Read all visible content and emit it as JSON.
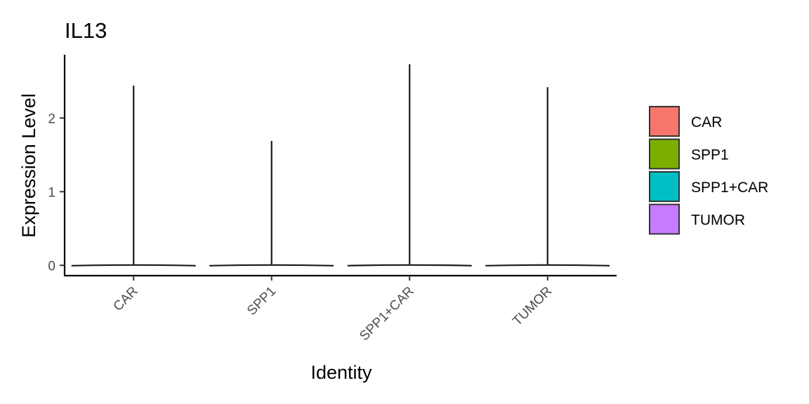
{
  "chart_data": {
    "type": "violin",
    "title": "IL13",
    "xlabel": "Identity",
    "ylabel": "Expression Level",
    "categories": [
      "CAR",
      "SPP1",
      "SPP1+CAR",
      "TUMOR"
    ],
    "yticks": [
      0,
      1,
      2
    ],
    "ylim": [
      -0.14,
      2.86
    ],
    "series": [
      {
        "name": "CAR",
        "color": "#F8766D",
        "max": 2.44,
        "min": 0
      },
      {
        "name": "SPP1",
        "color": "#7CAE00",
        "max": 1.69,
        "min": 0
      },
      {
        "name": "SPP1+CAR",
        "color": "#00BFC4",
        "max": 2.73,
        "min": 0
      },
      {
        "name": "TUMOR",
        "color": "#C77CFF",
        "max": 2.42,
        "min": 0
      }
    ],
    "legend": {
      "position": "right",
      "items": [
        "CAR",
        "SPP1",
        "SPP1+CAR",
        "TUMOR"
      ]
    },
    "grid": false
  }
}
